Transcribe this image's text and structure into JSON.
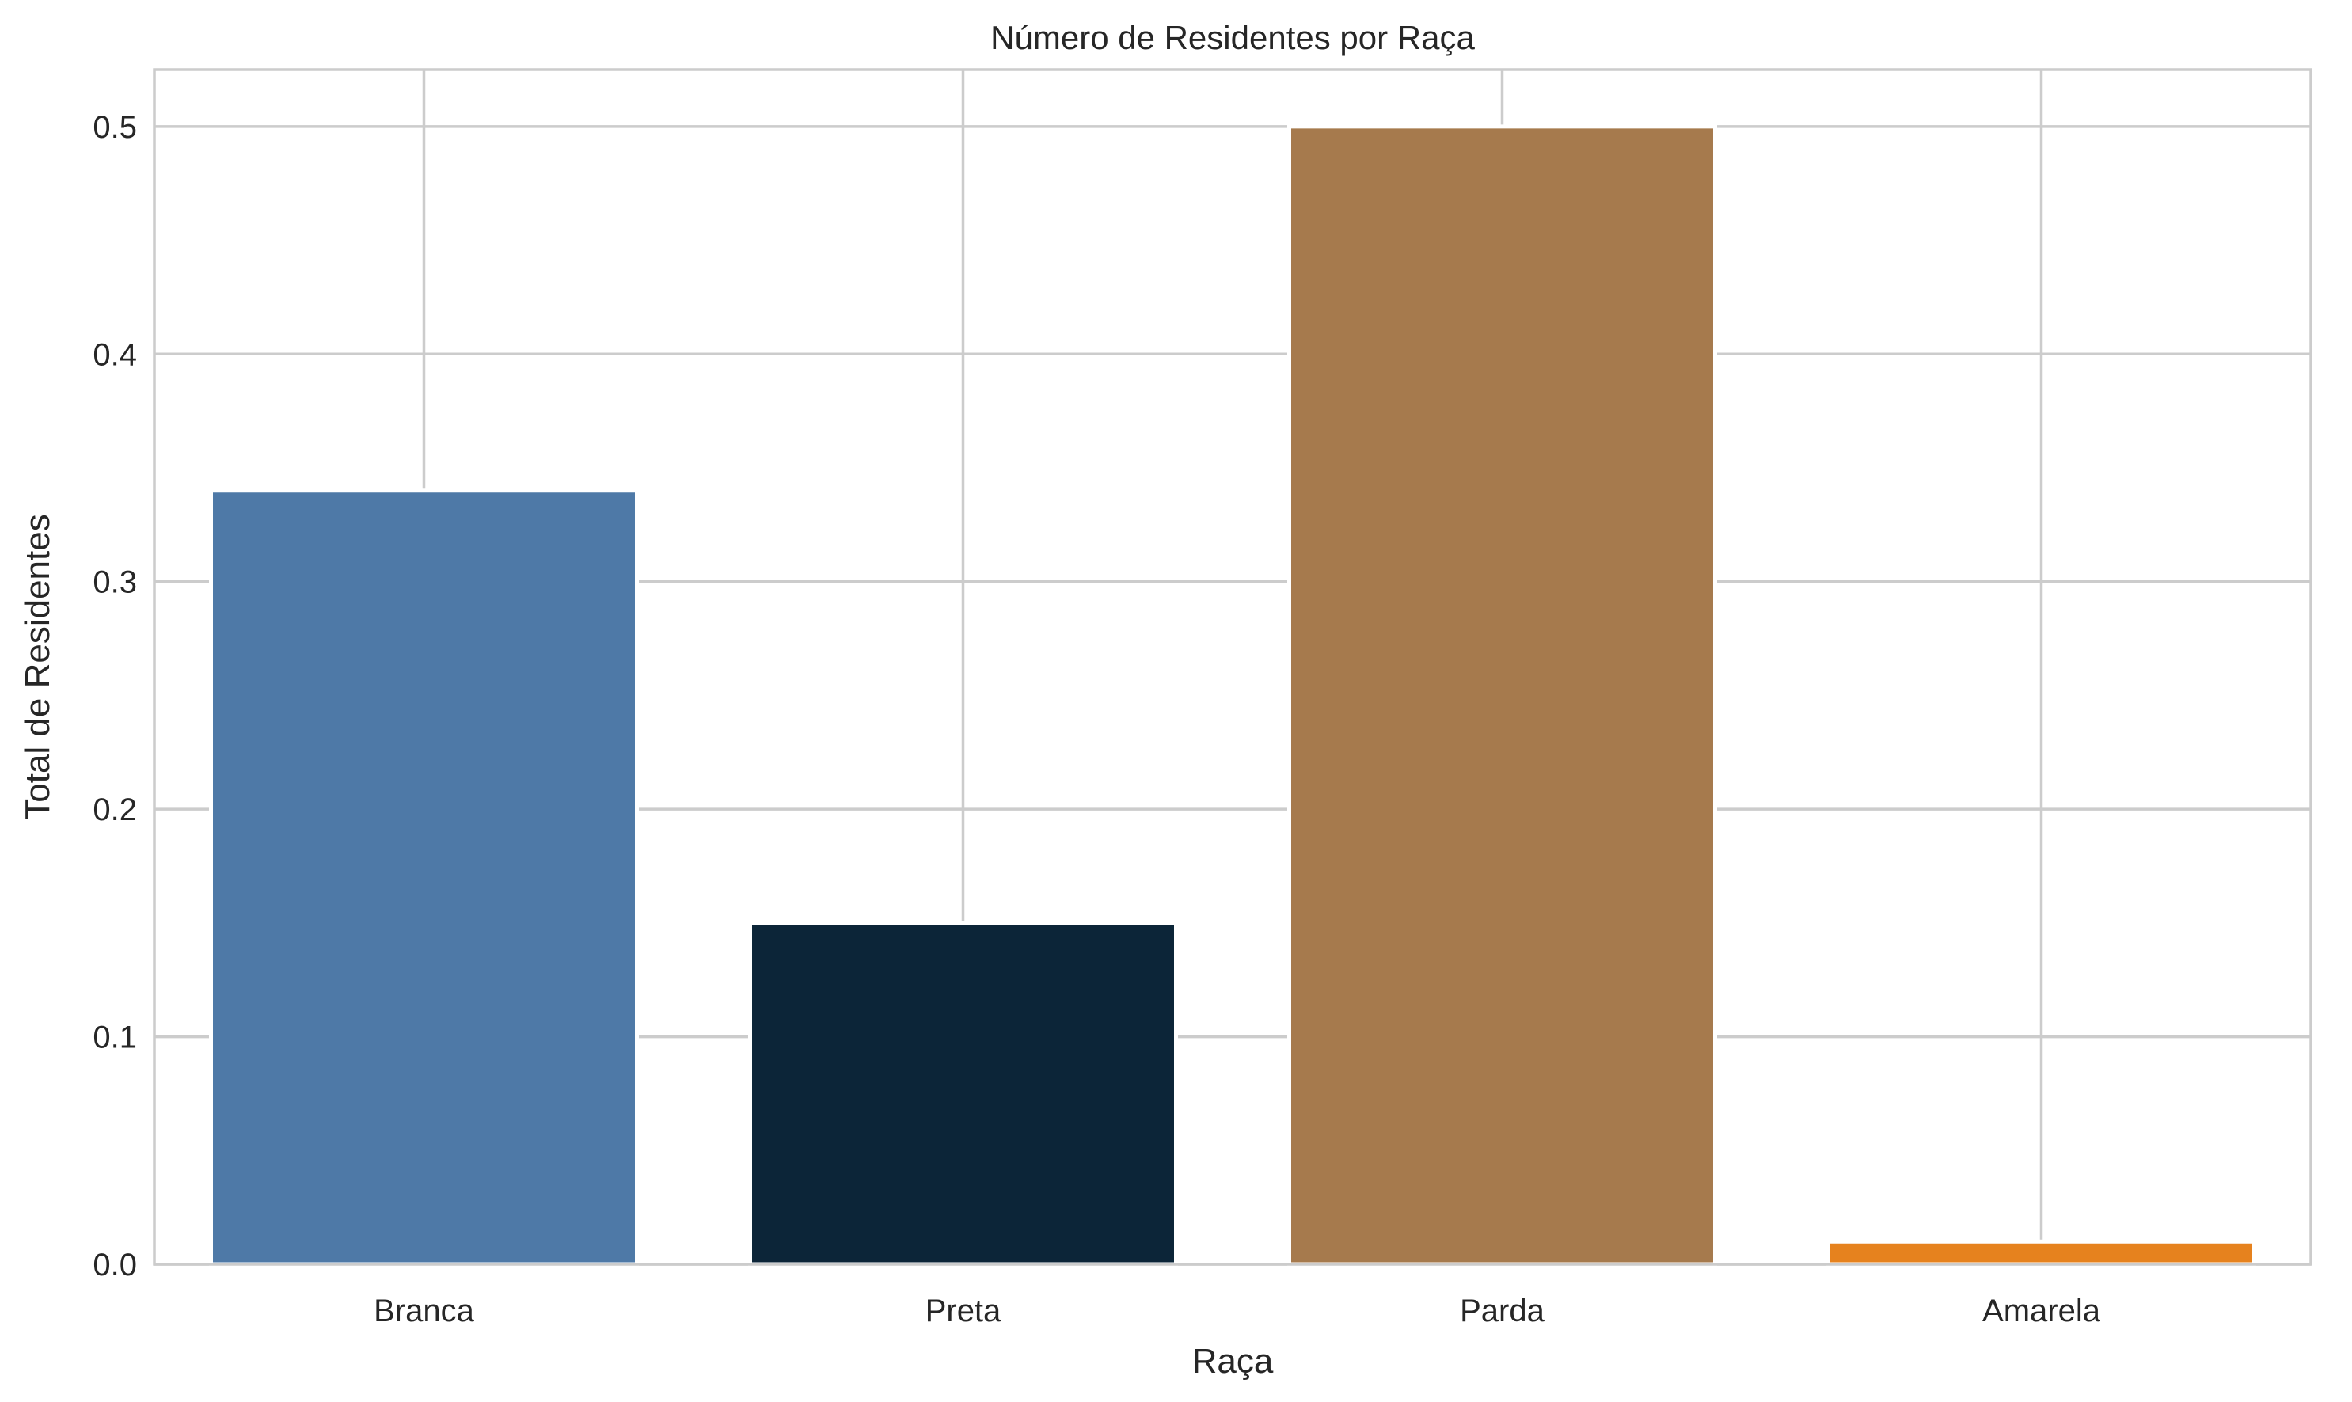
{
  "chart_data": {
    "type": "bar",
    "title": "Número de Residentes por Raça",
    "xlabel": "Raça",
    "ylabel": "Total de Residentes",
    "categories": [
      "Branca",
      "Preta",
      "Parda",
      "Amarela"
    ],
    "values": [
      0.34,
      0.15,
      0.5,
      0.01
    ],
    "colors": [
      "#4e79a7",
      "#0c2538",
      "#a67a4d",
      "#e6821e"
    ],
    "ylim": [
      0,
      0.525
    ],
    "yticks": [
      0.0,
      0.1,
      0.2,
      0.3,
      0.4,
      0.5
    ],
    "ytick_labels": [
      "0.0",
      "0.1",
      "0.2",
      "0.3",
      "0.4",
      "0.5"
    ],
    "grid": true,
    "grid_color": "#cccccc",
    "text_color": "#262626"
  }
}
